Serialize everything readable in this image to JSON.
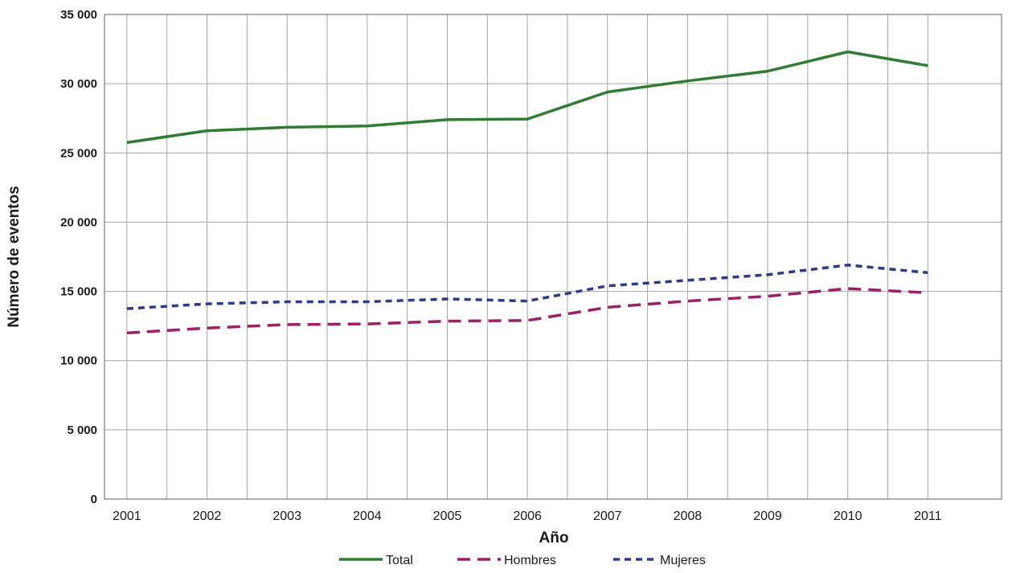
{
  "chart_data": {
    "type": "line",
    "title": "",
    "xlabel": "Año",
    "ylabel": "Número de eventos",
    "ylim": [
      0,
      35000
    ],
    "yticks": [
      0,
      5000,
      10000,
      15000,
      20000,
      25000,
      30000,
      35000
    ],
    "ytick_labels": [
      "0",
      "5 000",
      "10 000",
      "15 000",
      "20 000",
      "25 000",
      "30 000",
      "35 000"
    ],
    "xlim": [
      2000.72,
      2011.92
    ],
    "x_tick_labels": [
      "2001",
      "2002",
      "2003",
      "2004",
      "2005",
      "2006",
      "2007",
      "2008",
      "2009",
      "2010",
      "2011"
    ],
    "grid": true,
    "legend_position": "bottom",
    "series": [
      {
        "name": "Total",
        "color": "#2e7d32",
        "dash": "solid",
        "x": [
          2001,
          2002,
          2003,
          2004,
          2005,
          2006,
          2007,
          2008,
          2009,
          2010,
          2011
        ],
        "values": [
          25750,
          26600,
          26850,
          26950,
          27400,
          27450,
          29400,
          30200,
          30900,
          32300,
          31300
        ]
      },
      {
        "name": "Hombres",
        "color": "#9e1f63",
        "dash": "long-dash",
        "x": [
          2001,
          2002,
          2003,
          2004,
          2005,
          2006,
          2007,
          2008,
          2009,
          2010,
          2011
        ],
        "values": [
          12000,
          12350,
          12600,
          12650,
          12850,
          12900,
          13850,
          14300,
          14650,
          15200,
          14900
        ]
      },
      {
        "name": "Mujeres",
        "color": "#2b3990",
        "dash": "short-dash",
        "x": [
          2001,
          2002,
          2003,
          2004,
          2005,
          2006,
          2007,
          2008,
          2009,
          2010,
          2011
        ],
        "values": [
          13750,
          14100,
          14250,
          14250,
          14450,
          14300,
          15400,
          15800,
          16200,
          16900,
          16350
        ]
      }
    ]
  }
}
